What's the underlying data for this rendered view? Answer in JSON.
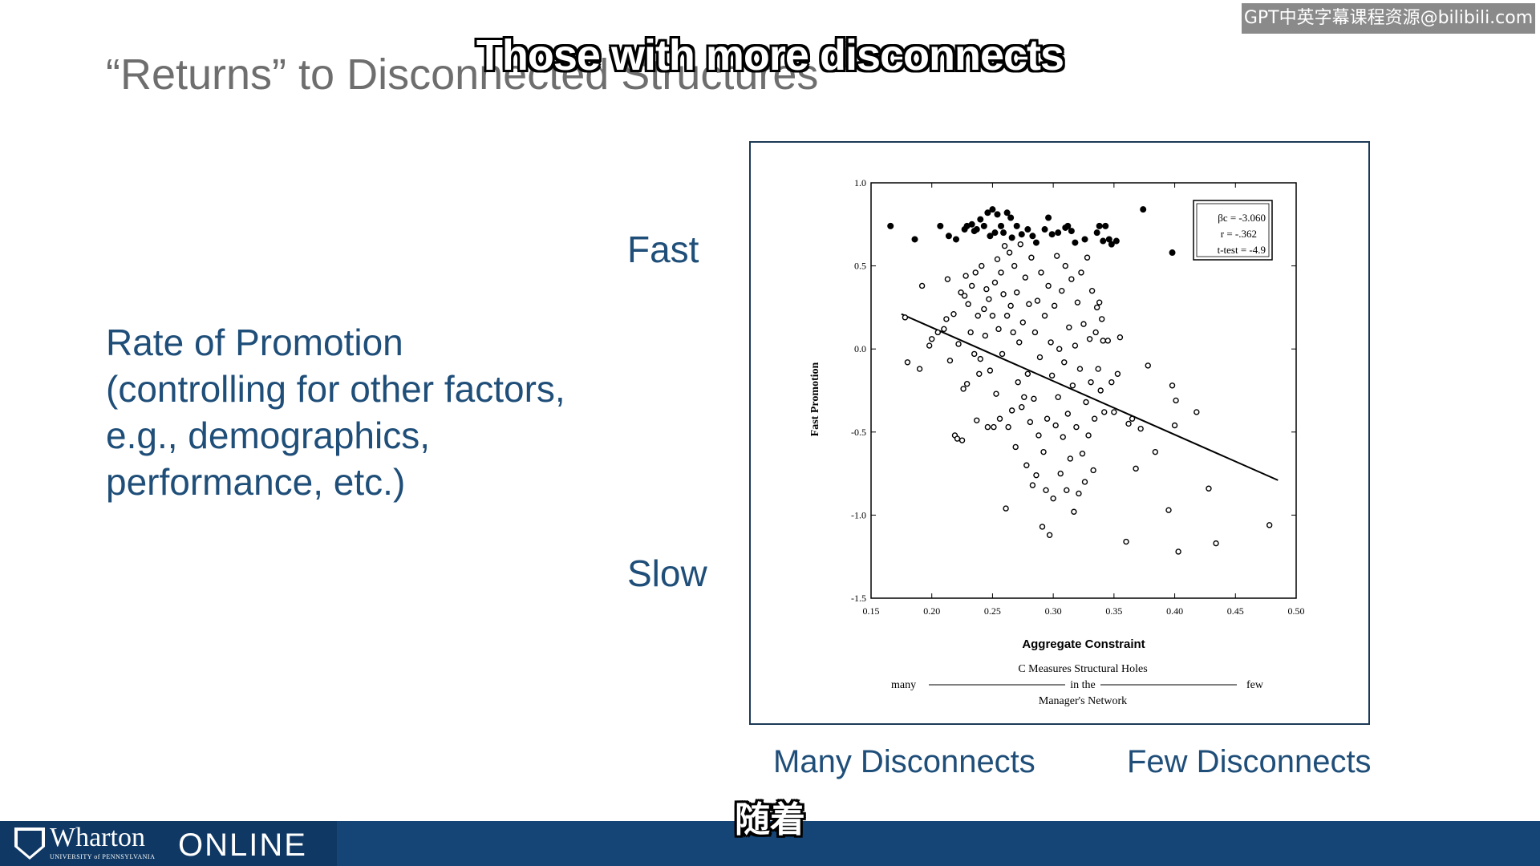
{
  "slide": {
    "title": "“Returns” to Disconnected Structures",
    "rate_lines": [
      "Rate of Promotion",
      "(controlling for other factors,",
      "e.g., demographics,",
      "performance, etc.)"
    ],
    "fast_label": "Fast",
    "slow_label": "Slow",
    "many_label": "Many Disconnects",
    "few_label": "Few Disconnects"
  },
  "subtitles": {
    "top": "Those with more disconnects",
    "bottom": "随着"
  },
  "watermark": "GPT中英字幕课程资源@bilibili.com",
  "footer": {
    "brand": "Wharton",
    "brand_sub": "UNIVERSITY of PENNSYLVANIA",
    "online": "ONLINE"
  },
  "colors": {
    "text_blue": "#1f4e79",
    "footer_blue": "#144576",
    "title_gray": "#6e6e6e"
  },
  "chart_data": {
    "type": "scatter",
    "xlabel": "Aggregate Constraint",
    "ylabel": "Fast Promotion",
    "xlim": [
      0.15,
      0.5
    ],
    "ylim": [
      -1.5,
      1.0
    ],
    "x_ticks": [
      0.15,
      0.2,
      0.25,
      0.3,
      0.35,
      0.4,
      0.45,
      0.5
    ],
    "x_tick_labels": [
      "0.15",
      "0.20",
      "0.25",
      "0.30",
      "0.35",
      "0.40",
      "0.45",
      "0.50"
    ],
    "y_ticks": [
      1.0,
      0.5,
      0.0,
      -0.5,
      -1.0,
      -1.5
    ],
    "y_tick_labels": [
      "1.0",
      "0.5",
      "0.0",
      "-0.5",
      "-1.0",
      "-1.5"
    ],
    "stats": [
      "βc = -3.060",
      "r = -.362",
      "t-test = -4.9"
    ],
    "caption": {
      "line1": "C Measures Structural Holes",
      "left": "many",
      "middle": "in the",
      "right": "few",
      "line3": "Manager's Network"
    },
    "fit_line": {
      "x": [
        0.175,
        0.485
      ],
      "y": [
        0.21,
        -0.79
      ]
    },
    "series": [
      {
        "marker": "filled",
        "points": [
          [
            0.166,
            0.74
          ],
          [
            0.186,
            0.66
          ],
          [
            0.207,
            0.74
          ],
          [
            0.214,
            0.68
          ],
          [
            0.22,
            0.66
          ],
          [
            0.227,
            0.72
          ],
          [
            0.229,
            0.74
          ],
          [
            0.233,
            0.75
          ],
          [
            0.235,
            0.71
          ],
          [
            0.237,
            0.72
          ],
          [
            0.24,
            0.78
          ],
          [
            0.243,
            0.74
          ],
          [
            0.246,
            0.82
          ],
          [
            0.248,
            0.68
          ],
          [
            0.25,
            0.84
          ],
          [
            0.252,
            0.7
          ],
          [
            0.254,
            0.81
          ],
          [
            0.257,
            0.74
          ],
          [
            0.259,
            0.7
          ],
          [
            0.262,
            0.82
          ],
          [
            0.265,
            0.79
          ],
          [
            0.266,
            0.67
          ],
          [
            0.27,
            0.74
          ],
          [
            0.274,
            0.69
          ],
          [
            0.279,
            0.72
          ],
          [
            0.283,
            0.68
          ],
          [
            0.286,
            0.64
          ],
          [
            0.293,
            0.72
          ],
          [
            0.296,
            0.79
          ],
          [
            0.299,
            0.69
          ],
          [
            0.304,
            0.7
          ],
          [
            0.31,
            0.73
          ],
          [
            0.312,
            0.74
          ],
          [
            0.315,
            0.71
          ],
          [
            0.318,
            0.64
          ],
          [
            0.326,
            0.66
          ],
          [
            0.336,
            0.7
          ],
          [
            0.338,
            0.74
          ],
          [
            0.341,
            0.65
          ],
          [
            0.343,
            0.74
          ],
          [
            0.346,
            0.66
          ],
          [
            0.348,
            0.63
          ],
          [
            0.352,
            0.65
          ],
          [
            0.374,
            0.84
          ],
          [
            0.398,
            0.58
          ]
        ]
      },
      {
        "marker": "hollow",
        "points": [
          [
            0.178,
            0.19
          ],
          [
            0.18,
            -0.08
          ],
          [
            0.192,
            0.38
          ],
          [
            0.19,
            -0.12
          ],
          [
            0.198,
            0.02
          ],
          [
            0.2,
            0.06
          ],
          [
            0.205,
            0.1
          ],
          [
            0.21,
            0.12
          ],
          [
            0.213,
            0.42
          ],
          [
            0.212,
            0.18
          ],
          [
            0.215,
            -0.07
          ],
          [
            0.218,
            0.21
          ],
          [
            0.219,
            -0.52
          ],
          [
            0.221,
            -0.54
          ],
          [
            0.222,
            0.03
          ],
          [
            0.224,
            0.34
          ],
          [
            0.225,
            -0.55
          ],
          [
            0.226,
            -0.24
          ],
          [
            0.227,
            0.32
          ],
          [
            0.228,
            0.44
          ],
          [
            0.229,
            -0.21
          ],
          [
            0.23,
            0.27
          ],
          [
            0.232,
            0.1
          ],
          [
            0.233,
            0.38
          ],
          [
            0.235,
            -0.03
          ],
          [
            0.236,
            0.46
          ],
          [
            0.237,
            -0.43
          ],
          [
            0.238,
            0.2
          ],
          [
            0.239,
            -0.15
          ],
          [
            0.24,
            -0.06
          ],
          [
            0.241,
            0.5
          ],
          [
            0.243,
            0.24
          ],
          [
            0.244,
            0.08
          ],
          [
            0.245,
            0.36
          ],
          [
            0.246,
            -0.47
          ],
          [
            0.247,
            0.3
          ],
          [
            0.248,
            -0.13
          ],
          [
            0.25,
            0.2
          ],
          [
            0.251,
            -0.47
          ],
          [
            0.252,
            0.4
          ],
          [
            0.253,
            -0.27
          ],
          [
            0.254,
            0.54
          ],
          [
            0.255,
            0.12
          ],
          [
            0.256,
            -0.42
          ],
          [
            0.257,
            0.46
          ],
          [
            0.258,
            -0.03
          ],
          [
            0.259,
            0.33
          ],
          [
            0.26,
            0.62
          ],
          [
            0.261,
            -0.96
          ],
          [
            0.262,
            0.2
          ],
          [
            0.263,
            -0.47
          ],
          [
            0.264,
            0.58
          ],
          [
            0.265,
            0.26
          ],
          [
            0.266,
            -0.37
          ],
          [
            0.267,
            0.1
          ],
          [
            0.268,
            0.5
          ],
          [
            0.269,
            -0.59
          ],
          [
            0.27,
            0.34
          ],
          [
            0.271,
            -0.2
          ],
          [
            0.272,
            0.04
          ],
          [
            0.273,
            0.63
          ],
          [
            0.274,
            -0.35
          ],
          [
            0.275,
            0.16
          ],
          [
            0.276,
            -0.29
          ],
          [
            0.277,
            0.43
          ],
          [
            0.278,
            -0.7
          ],
          [
            0.279,
            -0.15
          ],
          [
            0.28,
            0.27
          ],
          [
            0.281,
            -0.44
          ],
          [
            0.282,
            0.55
          ],
          [
            0.283,
            -0.82
          ],
          [
            0.284,
            -0.3
          ],
          [
            0.285,
            0.1
          ],
          [
            0.286,
            -0.76
          ],
          [
            0.287,
            0.29
          ],
          [
            0.288,
            -0.52
          ],
          [
            0.289,
            -0.05
          ],
          [
            0.29,
            0.46
          ],
          [
            0.291,
            -1.07
          ],
          [
            0.292,
            -0.62
          ],
          [
            0.293,
            0.2
          ],
          [
            0.294,
            -0.85
          ],
          [
            0.295,
            -0.42
          ],
          [
            0.296,
            0.38
          ],
          [
            0.297,
            -1.12
          ],
          [
            0.298,
            0.04
          ],
          [
            0.299,
            -0.16
          ],
          [
            0.3,
            -0.9
          ],
          [
            0.301,
            0.26
          ],
          [
            0.302,
            -0.46
          ],
          [
            0.303,
            0.56
          ],
          [
            0.304,
            -0.29
          ],
          [
            0.305,
            0.0
          ],
          [
            0.306,
            -0.75
          ],
          [
            0.307,
            0.35
          ],
          [
            0.308,
            -0.53
          ],
          [
            0.309,
            -0.08
          ],
          [
            0.31,
            0.5
          ],
          [
            0.311,
            -0.85
          ],
          [
            0.312,
            -0.39
          ],
          [
            0.313,
            0.13
          ],
          [
            0.314,
            -0.66
          ],
          [
            0.315,
            0.42
          ],
          [
            0.316,
            -0.22
          ],
          [
            0.317,
            -0.98
          ],
          [
            0.318,
            0.02
          ],
          [
            0.319,
            -0.47
          ],
          [
            0.32,
            0.28
          ],
          [
            0.321,
            -0.87
          ],
          [
            0.322,
            -0.12
          ],
          [
            0.323,
            0.46
          ],
          [
            0.324,
            -0.63
          ],
          [
            0.325,
            0.15
          ],
          [
            0.326,
            -0.8
          ],
          [
            0.327,
            -0.32
          ],
          [
            0.328,
            0.55
          ],
          [
            0.329,
            -0.52
          ],
          [
            0.33,
            0.06
          ],
          [
            0.331,
            -0.2
          ],
          [
            0.332,
            0.35
          ],
          [
            0.333,
            -0.73
          ],
          [
            0.334,
            -0.42
          ],
          [
            0.335,
            0.1
          ],
          [
            0.336,
            0.25
          ],
          [
            0.337,
            -0.12
          ],
          [
            0.338,
            0.28
          ],
          [
            0.339,
            -0.25
          ],
          [
            0.34,
            0.18
          ],
          [
            0.341,
            0.05
          ],
          [
            0.342,
            -0.38
          ],
          [
            0.345,
            0.05
          ],
          [
            0.348,
            -0.2
          ],
          [
            0.35,
            -0.38
          ],
          [
            0.353,
            -0.15
          ],
          [
            0.355,
            0.07
          ],
          [
            0.36,
            -1.16
          ],
          [
            0.362,
            -0.45
          ],
          [
            0.365,
            -0.42
          ],
          [
            0.368,
            -0.72
          ],
          [
            0.372,
            -0.48
          ],
          [
            0.378,
            -0.1
          ],
          [
            0.384,
            -0.62
          ],
          [
            0.395,
            -0.97
          ],
          [
            0.398,
            -0.22
          ],
          [
            0.4,
            -0.46
          ],
          [
            0.401,
            -0.31
          ],
          [
            0.403,
            -1.22
          ],
          [
            0.418,
            -0.38
          ],
          [
            0.428,
            -0.84
          ],
          [
            0.434,
            -1.17
          ],
          [
            0.478,
            -1.06
          ]
        ]
      }
    ]
  }
}
